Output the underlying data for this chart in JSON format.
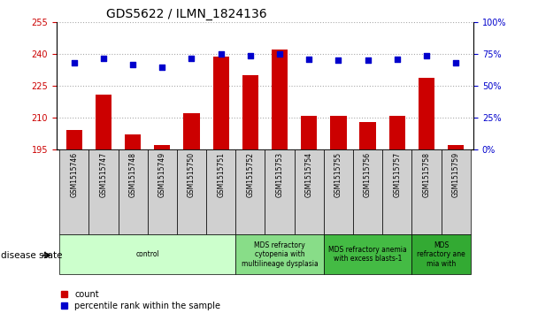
{
  "title": "GDS5622 / ILMN_1824136",
  "samples": [
    "GSM1515746",
    "GSM1515747",
    "GSM1515748",
    "GSM1515749",
    "GSM1515750",
    "GSM1515751",
    "GSM1515752",
    "GSM1515753",
    "GSM1515754",
    "GSM1515755",
    "GSM1515756",
    "GSM1515757",
    "GSM1515758",
    "GSM1515759"
  ],
  "counts": [
    204,
    221,
    202,
    197,
    212,
    239,
    230,
    242,
    211,
    211,
    208,
    211,
    229,
    197
  ],
  "percentiles": [
    68,
    72,
    67,
    65,
    72,
    75,
    74,
    75,
    71,
    70,
    70,
    71,
    74,
    68
  ],
  "ylim_left": [
    195,
    255
  ],
  "ylim_right": [
    0,
    100
  ],
  "yticks_left": [
    195,
    210,
    225,
    240,
    255
  ],
  "yticks_right": [
    0,
    25,
    50,
    75,
    100
  ],
  "bar_color": "#cc0000",
  "dot_color": "#0000cc",
  "grid_color": "#aaaaaa",
  "disease_groups": [
    {
      "label": "control",
      "start": 0,
      "end": 6,
      "color": "#ccffcc"
    },
    {
      "label": "MDS refractory\ncytopenia with\nmultilineage dysplasia",
      "start": 6,
      "end": 9,
      "color": "#88dd88"
    },
    {
      "label": "MDS refractory anemia\nwith excess blasts-1",
      "start": 9,
      "end": 12,
      "color": "#44bb44"
    },
    {
      "label": "MDS\nrefractory ane\nmia with",
      "start": 12,
      "end": 14,
      "color": "#33aa33"
    }
  ],
  "legend_count_label": "count",
  "legend_pct_label": "percentile rank within the sample",
  "xlabel_disease": "disease state",
  "title_fontsize": 10,
  "tick_fontsize": 7,
  "bar_width": 0.55,
  "sample_box_color": "#d0d0d0",
  "dot_size": 18
}
